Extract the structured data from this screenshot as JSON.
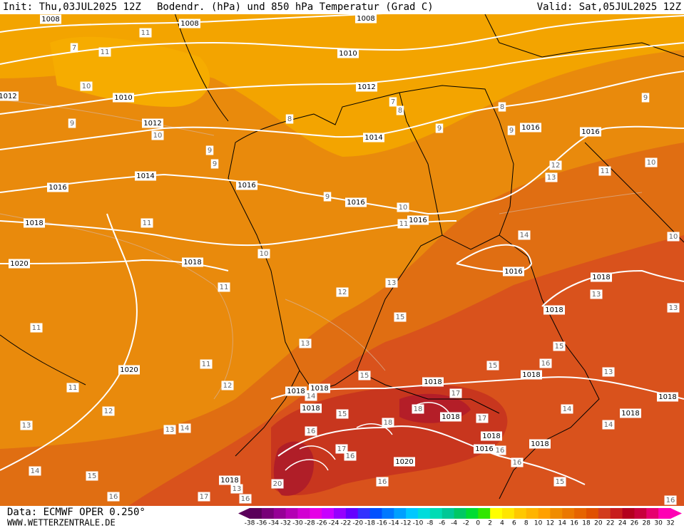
{
  "header": {
    "init": "Init: Thu,03JUL2025 12Z",
    "title": "Bodendr. (hPa) und 850 hPa Temperatur (Grad C)",
    "valid": "Valid: Sat,05JUL2025 12Z"
  },
  "footer": {
    "data": "Data: ECMWF OPER 0.250°",
    "site": "WWW.WETTERZENTRALE.DE"
  },
  "colorbar": {
    "ticks": [
      -38,
      -36,
      -34,
      -32,
      -30,
      -28,
      -26,
      -24,
      -22,
      -20,
      -18,
      -16,
      -14,
      -12,
      -10,
      -8,
      -6,
      -4,
      -2,
      0,
      2,
      4,
      6,
      8,
      10,
      12,
      14,
      16,
      18,
      20,
      22,
      24,
      26,
      28,
      30,
      32
    ],
    "colors": [
      "#5a005a",
      "#780078",
      "#960096",
      "#b400b4",
      "#d200d2",
      "#e600e6",
      "#c800ff",
      "#9600ff",
      "#6400ff",
      "#3232ff",
      "#0050ff",
      "#0078ff",
      "#00a0ff",
      "#00c8ff",
      "#00dcdc",
      "#00dcb4",
      "#00c896",
      "#00c864",
      "#00dc32",
      "#32e600",
      "#ffff00",
      "#ffe600",
      "#ffc800",
      "#ffb400",
      "#ffa000",
      "#f08c00",
      "#eb7800",
      "#e66400",
      "#e05000",
      "#d23c1e",
      "#c81e1e",
      "#b4001e",
      "#c8003c",
      "#e6006e",
      "#ff00b4"
    ]
  },
  "isobar_labels": [
    1008,
    1008,
    1008,
    1010,
    1012,
    1010,
    1012,
    1014,
    1014,
    1016,
    1016,
    1016,
    1016,
    1016,
    1016,
    1018,
    1018,
    1020,
    1016,
    1018,
    1018,
    1020,
    1018,
    1018,
    1018,
    1018,
    1018,
    1018,
    1018,
    1018,
    1016,
    1020,
    1018,
    1018,
    1018,
    1012
  ],
  "temperature_labels": [
    11,
    7,
    11,
    10,
    9,
    10,
    9,
    9,
    8,
    7,
    8,
    8,
    9,
    9,
    9,
    9,
    10,
    11,
    11,
    10,
    11,
    12,
    13,
    15,
    12,
    13,
    11,
    10,
    10,
    14,
    13,
    13,
    15,
    11,
    13,
    11,
    12,
    11,
    15,
    15,
    16,
    13,
    14,
    17,
    14,
    12,
    13,
    13,
    14,
    15,
    18,
    17,
    14,
    18,
    16,
    17,
    16,
    16,
    16,
    14,
    15,
    13,
    20,
    16,
    15,
    16,
    17,
    16,
    16
  ]
}
